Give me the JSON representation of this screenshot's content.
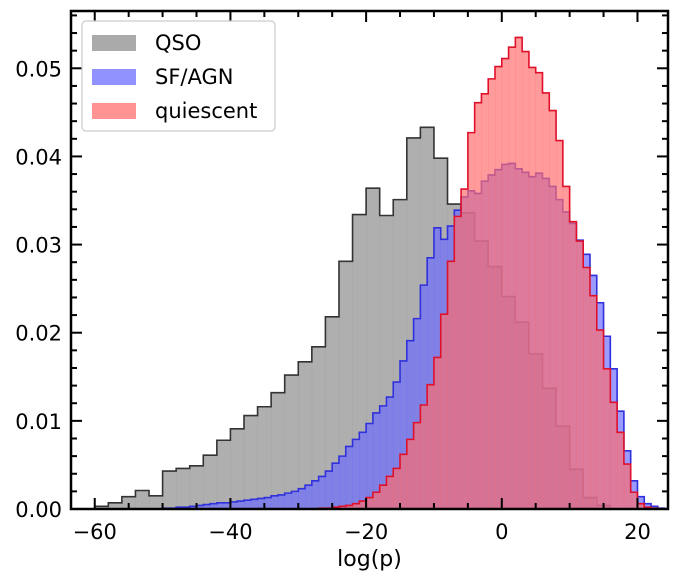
{
  "chart_data": {
    "type": "histogram",
    "title": "",
    "xlabel": "log(p)",
    "ylabel": "",
    "xlim": [
      -63.5,
      24.5
    ],
    "ylim": [
      0,
      0.0565
    ],
    "xticks": [
      -60,
      -40,
      -20,
      0,
      20
    ],
    "xtick_labels": [
      "−60",
      "−40",
      "−20",
      "0",
      "20"
    ],
    "yticks": [
      0,
      0.01,
      0.02,
      0.03,
      0.04,
      0.05
    ],
    "ytick_labels": [
      "0.00",
      "0.01",
      "0.02",
      "0.03",
      "0.04",
      "0.05"
    ],
    "grid": false,
    "legend_position": "upper-left",
    "series": [
      {
        "name": "QSO",
        "fill": "#999999",
        "fill_opacity": 0.78,
        "edge": "#333333",
        "x_start": -60,
        "bin_width": 2,
        "values": [
          0.0003,
          0.0007,
          0.0014,
          0.0021,
          0.0015,
          0.0043,
          0.0046,
          0.0049,
          0.0061,
          0.0078,
          0.0091,
          0.0106,
          0.0116,
          0.0132,
          0.0152,
          0.0167,
          0.0184,
          0.0218,
          0.0281,
          0.0334,
          0.0364,
          0.0333,
          0.0351,
          0.0421,
          0.0433,
          0.0398,
          0.0346,
          0.0336,
          0.0304,
          0.0275,
          0.0241,
          0.0212,
          0.0176,
          0.0137,
          0.0094,
          0.0045,
          0.0013,
          0.0004
        ]
      },
      {
        "name": "SF/AGN",
        "fill": "#6a6aff",
        "fill_opacity": 0.68,
        "edge": "#3030dd",
        "x_start": -60,
        "bin_width": 1,
        "values": [
          0,
          0,
          0,
          0,
          0,
          0,
          0,
          0,
          0,
          0,
          0.0001,
          0.0001,
          0.0002,
          0.0002,
          0.0003,
          0.0004,
          0.0005,
          0.0006,
          0.0007,
          0.0007,
          0.0008,
          0.0009,
          0.001,
          0.0011,
          0.0012,
          0.0013,
          0.0015,
          0.0016,
          0.0018,
          0.002,
          0.0023,
          0.0027,
          0.0032,
          0.0037,
          0.0043,
          0.0052,
          0.006,
          0.0071,
          0.0079,
          0.0087,
          0.0097,
          0.0109,
          0.0117,
          0.0127,
          0.0144,
          0.0168,
          0.0191,
          0.0216,
          0.0254,
          0.0285,
          0.0319,
          0.0306,
          0.0321,
          0.0339,
          0.0354,
          0.0361,
          0.0358,
          0.0372,
          0.0379,
          0.0385,
          0.0391,
          0.0392,
          0.0386,
          0.0382,
          0.0377,
          0.0381,
          0.0375,
          0.0366,
          0.0351,
          0.0337,
          0.0324,
          0.0305,
          0.0289,
          0.0265,
          0.0234,
          0.0196,
          0.0159,
          0.0111,
          0.0066,
          0.0032,
          0.0014,
          0.0006,
          0.0003,
          0.0001
        ]
      },
      {
        "name": "quiescent",
        "fill": "#ff6b6b",
        "fill_opacity": 0.68,
        "edge": "#e0102a",
        "x_start": -60,
        "bin_width": 1,
        "values": [
          0,
          0,
          0,
          0,
          0,
          0,
          0,
          0,
          0,
          0,
          0,
          0,
          0,
          0,
          0,
          0,
          0,
          0,
          0,
          0,
          0,
          0,
          0,
          0,
          0,
          0,
          0,
          0,
          0,
          0,
          0,
          0,
          0,
          0.0001,
          0.0001,
          0.0002,
          0.0003,
          0.0004,
          0.0006,
          0.0009,
          0.0013,
          0.0019,
          0.0027,
          0.0037,
          0.0046,
          0.0062,
          0.0079,
          0.0098,
          0.0118,
          0.0141,
          0.0172,
          0.0221,
          0.0281,
          0.0332,
          0.0363,
          0.0427,
          0.0461,
          0.0471,
          0.0488,
          0.0502,
          0.0511,
          0.0524,
          0.0535,
          0.0519,
          0.0501,
          0.0495,
          0.0472,
          0.0452,
          0.0418,
          0.0366,
          0.0326,
          0.0304,
          0.0274,
          0.0242,
          0.0203,
          0.0159,
          0.0121,
          0.0087,
          0.0051,
          0.0019,
          0.0006,
          0.0002,
          0.0001,
          0
        ]
      }
    ]
  }
}
